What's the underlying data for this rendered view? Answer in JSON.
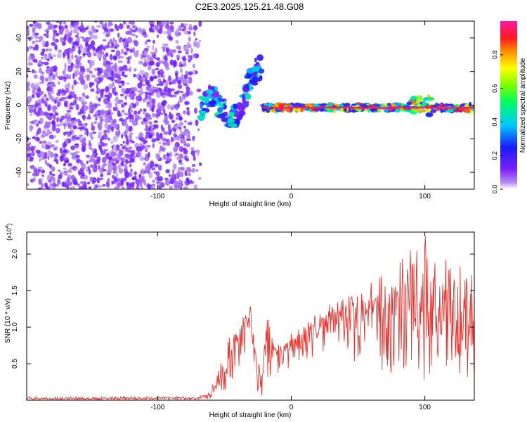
{
  "title": "C2E3.2025.125.21.48.G08",
  "colors": {
    "snr_line": "#e8332e",
    "background": "#ffffff",
    "axis": "#000000",
    "spectrogram_low": "#8a2be2"
  },
  "chart_data": [
    {
      "type": "heatmap",
      "title": "C2E3.2025.125.21.48.G08",
      "xlabel": "Height of straight line (km)",
      "ylabel": "Frequency (Hz)",
      "xlim": [
        -198,
        137
      ],
      "ylim": [
        -50,
        50
      ],
      "x_tick_labels": [
        "-100",
        "0",
        "100"
      ],
      "x_ticks": [
        -100,
        0,
        100
      ],
      "y_tick_labels": [
        "-40",
        "-20",
        "0",
        "20",
        "40"
      ],
      "y_ticks": [
        -40,
        -20,
        0,
        20,
        40
      ],
      "colorbar": {
        "label": "Normalized spectral amplitude",
        "range": [
          0,
          1
        ],
        "tick_labels": [
          "0.0",
          "0.2",
          "0.4",
          "0.6",
          "0.8"
        ],
        "ticks": [
          0.0,
          0.2,
          0.4,
          0.6,
          0.8
        ],
        "colormap": "rainbow (white, violet, blue, cyan, green, yellow, red, magenta)"
      },
      "regions": [
        {
          "x_range": [
            -198,
            -68
          ],
          "freq_range": [
            -50,
            50
          ],
          "amplitude_range": [
            0.0,
            0.2
          ],
          "pattern": "scattered noise"
        },
        {
          "x_range": [
            -68,
            -22
          ],
          "freq_range": [
            -12,
            30
          ],
          "amplitude_range": [
            0.1,
            0.5
          ],
          "pattern": "diffuse streaks"
        },
        {
          "x_range": [
            -22,
            137
          ],
          "freq_range": [
            -5,
            2
          ],
          "amplitude_range": [
            0.3,
            1.0
          ],
          "pattern": "narrow band near 0 Hz"
        }
      ]
    },
    {
      "type": "line",
      "xlabel": "Height of straight line (km)",
      "ylabel": "SNR (10 * v/v)",
      "y_scale_label": "(x10",
      "y_scale_exp": "4",
      "xlim": [
        -198,
        137
      ],
      "ylim": [
        0,
        2.3
      ],
      "x_tick_labels": [
        "-100",
        "0",
        "100"
      ],
      "x_ticks": [
        -100,
        0,
        100
      ],
      "y_tick_labels": [
        "0.5",
        "1.0",
        "1.5",
        "2.0"
      ],
      "y_ticks": [
        0.5,
        1.0,
        1.5,
        2.0
      ],
      "series": [
        {
          "color": "#e8332e",
          "x": [
            -198,
            -150,
            -100,
            -70,
            -60,
            -55,
            -50,
            -45,
            -40,
            -37,
            -34,
            -31,
            -28,
            -25,
            -22,
            -18,
            -15,
            -10,
            -5,
            0,
            10,
            20,
            30,
            40,
            50,
            60,
            70,
            80,
            85,
            90,
            95,
            100,
            105,
            110,
            115,
            120,
            125,
            130,
            137
          ],
          "y": [
            0.02,
            0.02,
            0.03,
            0.03,
            0.08,
            0.25,
            0.45,
            0.62,
            0.75,
            0.85,
            1.05,
            1.2,
            0.7,
            0.35,
            0.22,
            1.05,
            0.7,
            0.55,
            0.65,
            0.75,
            0.88,
            0.98,
            1.05,
            1.12,
            1.18,
            1.2,
            1.22,
            1.28,
            1.45,
            1.62,
            1.4,
            1.55,
            1.3,
            1.2,
            1.35,
            1.15,
            1.2,
            1.05,
            1.1
          ],
          "y_min_envelope": [
            0.0,
            0.0,
            0.0,
            0.0,
            0.02,
            0.08,
            0.12,
            0.2,
            0.25,
            0.3,
            0.35,
            0.4,
            0.15,
            0.05,
            0.04,
            0.3,
            0.3,
            0.35,
            0.4,
            0.45,
            0.55,
            0.6,
            0.65,
            0.55,
            0.5,
            0.45,
            0.4,
            0.35,
            0.3,
            0.25,
            0.2,
            0.15,
            0.25,
            0.3,
            0.35,
            0.3,
            0.25,
            0.2,
            0.3
          ],
          "y_max_envelope": [
            0.05,
            0.05,
            0.05,
            0.05,
            0.15,
            0.45,
            0.7,
            0.95,
            1.05,
            1.15,
            1.28,
            1.25,
            1.15,
            0.6,
            0.4,
            1.15,
            0.95,
            0.75,
            0.85,
            1.0,
            1.05,
            1.2,
            1.35,
            1.5,
            1.55,
            1.65,
            1.75,
            1.85,
            2.0,
            2.3,
            2.25,
            2.3,
            2.0,
            1.8,
            2.3,
            1.8,
            1.9,
            1.7,
            1.75
          ]
        }
      ]
    }
  ]
}
